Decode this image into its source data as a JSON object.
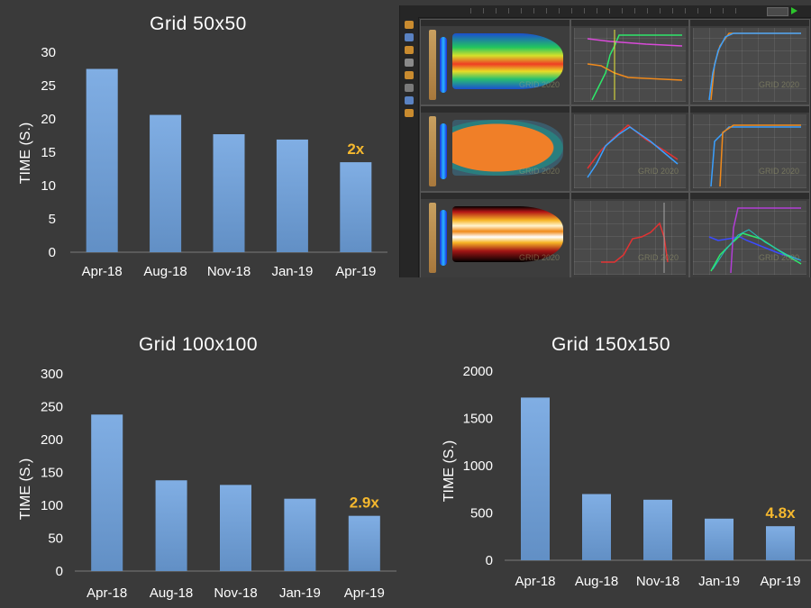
{
  "chart_data": [
    {
      "type": "bar",
      "title": "Grid 50x50",
      "categories": [
        "Apr-18",
        "Aug-18",
        "Nov-18",
        "Jan-19",
        "Apr-19"
      ],
      "values": [
        27.5,
        20.6,
        17.7,
        16.9,
        13.5
      ],
      "ylabel": "TIME (S.)",
      "xlabel": "",
      "ylim": [
        0,
        30
      ],
      "yticks": [
        "0",
        "5",
        "10",
        "15",
        "20",
        "25",
        "30"
      ],
      "annotation": "2x",
      "bar_color": "#6fa3e0",
      "annotation_color": "#f5b82e",
      "grid": false
    },
    {
      "type": "bar",
      "title": "Grid 100x100",
      "categories": [
        "Apr-18",
        "Aug-18",
        "Nov-18",
        "Jan-19",
        "Apr-19"
      ],
      "values": [
        238,
        138,
        131,
        110,
        84
      ],
      "ylabel": "TIME (S.)",
      "xlabel": "",
      "ylim": [
        0,
        300
      ],
      "yticks": [
        "0",
        "50",
        "100",
        "150",
        "200",
        "250",
        "300"
      ],
      "annotation": "2.9x",
      "bar_color": "#6fa3e0",
      "annotation_color": "#f5b82e",
      "grid": false
    },
    {
      "type": "bar",
      "title": "Grid 150x150",
      "categories": [
        "Apr-18",
        "Aug-18",
        "Nov-18",
        "Jan-19",
        "Apr-19"
      ],
      "values": [
        1720,
        700,
        640,
        440,
        360
      ],
      "ylabel": "TIME (S.)",
      "xlabel": "",
      "ylim": [
        0,
        2000
      ],
      "yticks": [
        "0",
        "500",
        "1000",
        "1500",
        "2000"
      ],
      "annotation": "4.8x",
      "bar_color": "#6fa3e0",
      "annotation_color": "#f5b82e",
      "grid": false
    }
  ],
  "screenshot": {
    "panel_labels": [
      "fracture-width-map",
      "pressure-chart",
      "fracture-half-length-chart",
      "proppant-loading-map",
      "net-pressure-chart",
      "fracture-height-chart",
      "proppant-concentration-map",
      "bottom-hole-pressure-chart",
      "slurry-rate-chart"
    ],
    "watermark": "GRID 2020"
  }
}
